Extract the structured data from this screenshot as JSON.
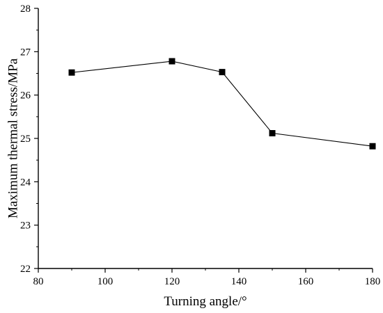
{
  "chart_data": {
    "type": "line",
    "title": "",
    "xlabel": "Turning angle/°",
    "ylabel": "Maximum thermal stress/MPa",
    "xlim": [
      80,
      180
    ],
    "ylim": [
      22,
      28
    ],
    "x_ticks": [
      80,
      100,
      120,
      140,
      160,
      180
    ],
    "y_ticks": [
      22,
      23,
      24,
      25,
      26,
      27,
      28
    ],
    "x_tick_labels": [
      "80",
      "100",
      "120",
      "140",
      "160",
      "180"
    ],
    "y_tick_labels": [
      "22",
      "23",
      "24",
      "25",
      "26",
      "27",
      "28"
    ],
    "grid": false,
    "legend": "none",
    "marker": "square",
    "line_color": "#000000",
    "series": [
      {
        "x": [
          90,
          120,
          135,
          150,
          180
        ],
        "values": [
          26.52,
          26.78,
          26.53,
          25.12,
          24.82
        ]
      }
    ]
  }
}
